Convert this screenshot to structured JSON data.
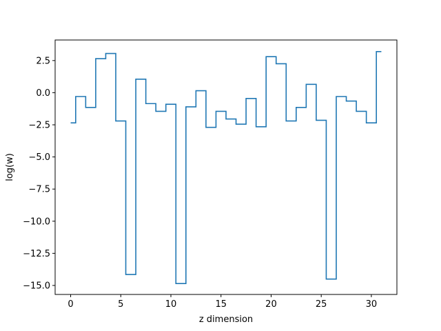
{
  "chart_data": {
    "type": "line",
    "drawstyle": "steps-mid",
    "xlabel": "z dimension",
    "ylabel": "log(w)",
    "xlim": [
      -1.55,
      32.55
    ],
    "ylim": [
      -15.7,
      4.1
    ],
    "xticks": [
      0,
      5,
      10,
      15,
      20,
      25,
      30
    ],
    "xtick_labels": [
      "0",
      "5",
      "10",
      "15",
      "20",
      "25",
      "30"
    ],
    "yticks": [
      2.5,
      0.0,
      -2.5,
      -5.0,
      -7.5,
      -10.0,
      -12.5,
      -15.0
    ],
    "ytick_labels": [
      "2.5",
      "0.0",
      "−2.5",
      "−5.0",
      "−7.5",
      "−10.0",
      "−12.5",
      "−15.0"
    ],
    "grid": false,
    "series": [
      {
        "color": "#1f77b4",
        "x": [
          0,
          1,
          2,
          3,
          4,
          5,
          6,
          7,
          8,
          9,
          10,
          11,
          12,
          13,
          14,
          15,
          16,
          17,
          18,
          19,
          20,
          21,
          22,
          23,
          24,
          25,
          26,
          27,
          28,
          29,
          30,
          31
        ],
        "y": [
          -2.35,
          -0.3,
          -1.15,
          2.65,
          3.05,
          -2.2,
          -14.15,
          1.05,
          -0.85,
          -1.45,
          -0.9,
          -14.85,
          -1.1,
          0.15,
          -2.7,
          -1.45,
          -2.05,
          -2.45,
          -0.45,
          -2.65,
          2.8,
          2.25,
          -2.2,
          -1.15,
          0.65,
          -2.15,
          -14.5,
          -0.3,
          -0.65,
          -1.45,
          -2.35,
          3.2
        ]
      }
    ]
  }
}
